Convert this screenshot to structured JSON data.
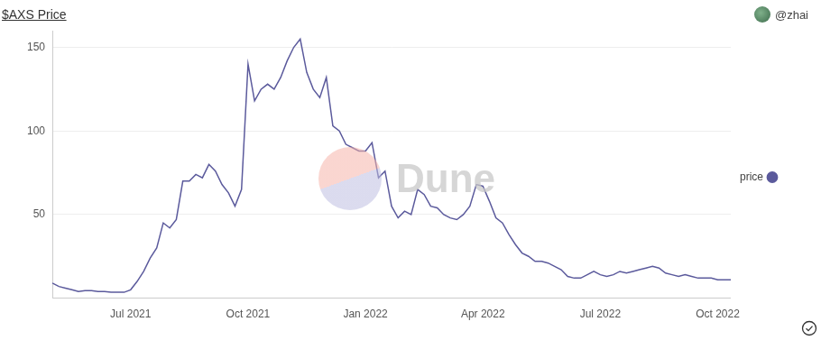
{
  "chart_data": {
    "type": "line",
    "title": "$AXS Price",
    "source": "@zhai",
    "watermark": "Dune",
    "categories": [
      null,
      null,
      null,
      null,
      null,
      null,
      null,
      null,
      null,
      null,
      null,
      null,
      "Jul 2021",
      null,
      null,
      null,
      null,
      null,
      null,
      null,
      null,
      null,
      null,
      null,
      null,
      null,
      null,
      null,
      null,
      null,
      "Oct 2021",
      null,
      null,
      null,
      null,
      null,
      null,
      null,
      null,
      null,
      null,
      null,
      null,
      null,
      null,
      null,
      null,
      null,
      "Jan 2022",
      null,
      null,
      null,
      null,
      null,
      null,
      null,
      null,
      null,
      null,
      null,
      null,
      null,
      null,
      null,
      null,
      null,
      "Apr 2022",
      null,
      null,
      null,
      null,
      null,
      null,
      null,
      null,
      null,
      null,
      null,
      null,
      null,
      null,
      null,
      null,
      null,
      "Jul 2022",
      null,
      null,
      null,
      null,
      null,
      null,
      null,
      null,
      null,
      null,
      null,
      null,
      null,
      null,
      null,
      null,
      null,
      "Oct 2022",
      null,
      null
    ],
    "series": [
      {
        "name": "price",
        "color": "#5b5a9c",
        "values": [
          9,
          7,
          6,
          5,
          4,
          4.5,
          4.5,
          4,
          4,
          3.5,
          3.5,
          3.5,
          5,
          10,
          16,
          24,
          30,
          45,
          42,
          47,
          70,
          70,
          74,
          72,
          80,
          76,
          68,
          63,
          55,
          65,
          140,
          118,
          125,
          128,
          125,
          132,
          142,
          150,
          155,
          135,
          125,
          120,
          132,
          103,
          100,
          92,
          90,
          88,
          88,
          93,
          72,
          76,
          55,
          48,
          52,
          50,
          65,
          62,
          55,
          54,
          50,
          48,
          47,
          50,
          55,
          68,
          67,
          58,
          48,
          45,
          38,
          32,
          27,
          25,
          22,
          22,
          21,
          19,
          17,
          13,
          12,
          12,
          14,
          16,
          14,
          13,
          14,
          16,
          15,
          16,
          17,
          18,
          19,
          18,
          15,
          14,
          13,
          14,
          13,
          12,
          12,
          12,
          11,
          11,
          11
        ]
      }
    ],
    "ylim": [
      0,
      160
    ],
    "yticks": [
      50,
      100,
      150
    ],
    "grid": true,
    "legend": "right"
  }
}
